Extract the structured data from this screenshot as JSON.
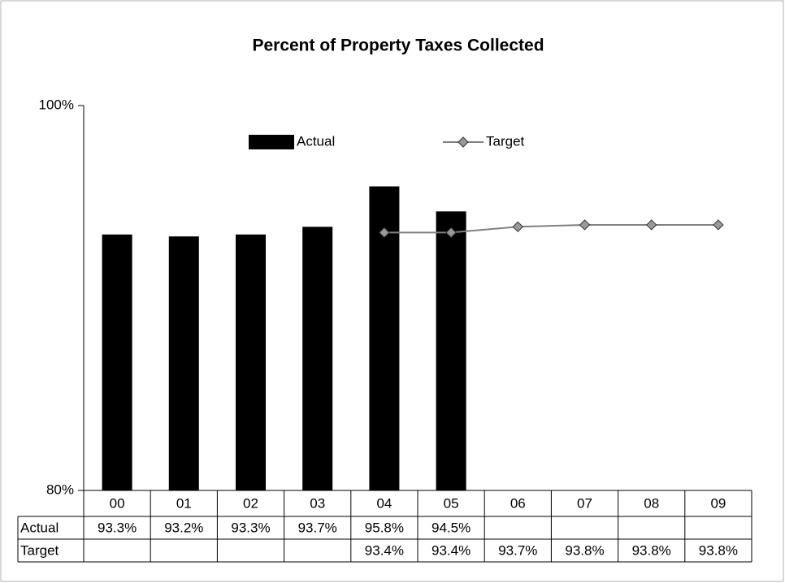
{
  "chart_data": {
    "type": "bar",
    "title": "Percent of Property Taxes Collected",
    "categories": [
      "00",
      "01",
      "02",
      "03",
      "04",
      "05",
      "06",
      "07",
      "08",
      "09"
    ],
    "series": [
      {
        "name": "Actual",
        "type": "bar",
        "color": "#000000",
        "values": [
          93.3,
          93.2,
          93.3,
          93.7,
          95.8,
          94.5,
          null,
          null,
          null,
          null
        ],
        "value_labels": [
          "93.3%",
          "93.2%",
          "93.3%",
          "93.7%",
          "95.8%",
          "94.5%",
          null,
          null,
          null,
          null
        ]
      },
      {
        "name": "Target",
        "type": "line",
        "color": "#808080",
        "values": [
          null,
          null,
          null,
          null,
          93.4,
          93.4,
          93.7,
          93.8,
          93.8,
          93.8
        ],
        "value_labels": [
          null,
          null,
          null,
          null,
          "93.4%",
          "93.4%",
          "93.7%",
          "93.8%",
          "93.8%",
          "93.8%"
        ]
      }
    ],
    "ylim": [
      80,
      100
    ],
    "yticks": [
      {
        "value": 80,
        "label": "80%"
      },
      {
        "value": 100,
        "label": "100%"
      }
    ],
    "legend": "top"
  }
}
